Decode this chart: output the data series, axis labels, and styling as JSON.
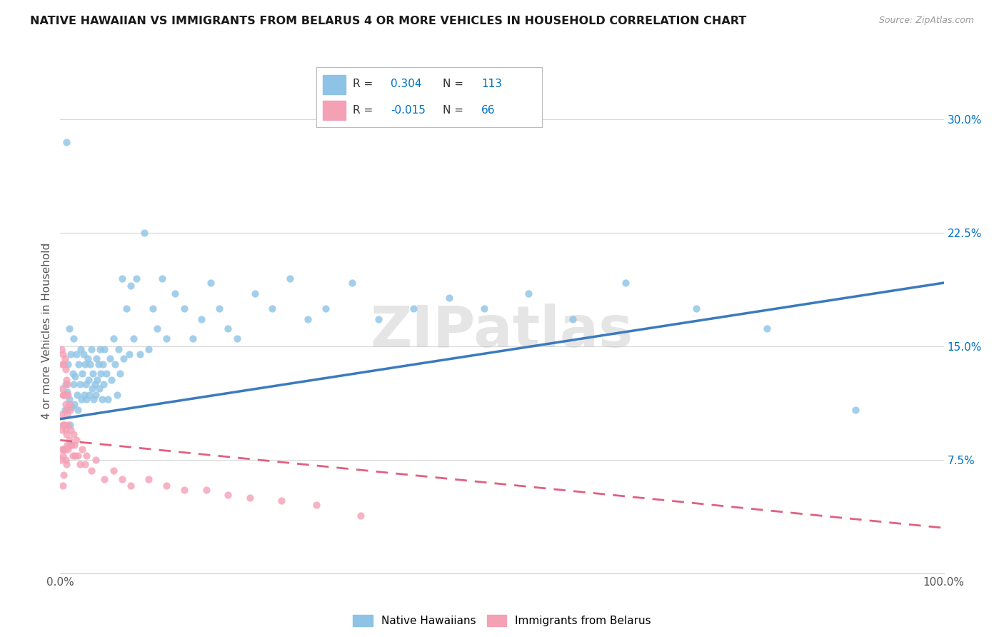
{
  "title": "NATIVE HAWAIIAN VS IMMIGRANTS FROM BELARUS 4 OR MORE VEHICLES IN HOUSEHOLD CORRELATION CHART",
  "source": "Source: ZipAtlas.com",
  "ylabel": "4 or more Vehicles in Household",
  "xlim": [
    0,
    1.0
  ],
  "ylim": [
    0,
    0.32
  ],
  "yticks_right": [
    0.075,
    0.15,
    0.225,
    0.3
  ],
  "yticklabels_right": [
    "7.5%",
    "15.0%",
    "22.5%",
    "30.0%"
  ],
  "color_blue": "#8ec3e6",
  "color_blue_line": "#3a7abf",
  "color_pink": "#f4a0b5",
  "color_pink_line": "#e06080",
  "color_r_value": "#0070C0",
  "watermark": "ZIPatlas",
  "blue_trend_y_start": 0.102,
  "blue_trend_y_end": 0.192,
  "pink_trend_y_start": 0.088,
  "pink_trend_y_end": 0.03,
  "background_color": "#ffffff",
  "grid_color": "#d8d8d8",
  "blue_x": [
    0.005,
    0.006,
    0.007,
    0.008,
    0.009,
    0.01,
    0.01,
    0.011,
    0.012,
    0.013,
    0.014,
    0.015,
    0.015,
    0.016,
    0.017,
    0.018,
    0.019,
    0.02,
    0.021,
    0.022,
    0.023,
    0.024,
    0.025,
    0.026,
    0.027,
    0.028,
    0.029,
    0.03,
    0.031,
    0.032,
    0.033,
    0.034,
    0.035,
    0.036,
    0.037,
    0.038,
    0.039,
    0.04,
    0.041,
    0.042,
    0.043,
    0.044,
    0.045,
    0.046,
    0.047,
    0.048,
    0.049,
    0.05,
    0.052,
    0.054,
    0.056,
    0.058,
    0.06,
    0.062,
    0.064,
    0.066,
    0.068,
    0.07,
    0.072,
    0.075,
    0.078,
    0.08,
    0.083,
    0.086,
    0.09,
    0.095,
    0.1,
    0.105,
    0.11,
    0.115,
    0.12,
    0.13,
    0.14,
    0.15,
    0.16,
    0.17,
    0.18,
    0.19,
    0.2,
    0.22,
    0.24,
    0.26,
    0.28,
    0.3,
    0.33,
    0.36,
    0.4,
    0.44,
    0.48,
    0.53,
    0.58,
    0.64,
    0.72,
    0.8,
    0.9
  ],
  "blue_y": [
    0.108,
    0.125,
    0.285,
    0.12,
    0.138,
    0.115,
    0.162,
    0.098,
    0.145,
    0.11,
    0.132,
    0.125,
    0.155,
    0.112,
    0.13,
    0.145,
    0.118,
    0.108,
    0.138,
    0.125,
    0.148,
    0.115,
    0.132,
    0.145,
    0.118,
    0.138,
    0.125,
    0.115,
    0.142,
    0.128,
    0.118,
    0.138,
    0.148,
    0.122,
    0.132,
    0.115,
    0.125,
    0.118,
    0.142,
    0.128,
    0.138,
    0.122,
    0.148,
    0.132,
    0.115,
    0.138,
    0.125,
    0.148,
    0.132,
    0.115,
    0.142,
    0.128,
    0.155,
    0.138,
    0.118,
    0.148,
    0.132,
    0.195,
    0.142,
    0.175,
    0.145,
    0.19,
    0.155,
    0.195,
    0.145,
    0.225,
    0.148,
    0.175,
    0.162,
    0.195,
    0.155,
    0.185,
    0.175,
    0.155,
    0.168,
    0.192,
    0.175,
    0.162,
    0.155,
    0.185,
    0.175,
    0.195,
    0.168,
    0.175,
    0.192,
    0.168,
    0.175,
    0.182,
    0.175,
    0.185,
    0.168,
    0.192,
    0.175,
    0.162,
    0.108
  ],
  "pink_x": [
    0.001,
    0.001,
    0.001,
    0.002,
    0.002,
    0.002,
    0.002,
    0.003,
    0.003,
    0.003,
    0.003,
    0.003,
    0.004,
    0.004,
    0.004,
    0.004,
    0.004,
    0.005,
    0.005,
    0.005,
    0.005,
    0.006,
    0.006,
    0.006,
    0.006,
    0.007,
    0.007,
    0.007,
    0.007,
    0.008,
    0.008,
    0.008,
    0.009,
    0.009,
    0.009,
    0.01,
    0.01,
    0.011,
    0.011,
    0.012,
    0.013,
    0.014,
    0.015,
    0.016,
    0.017,
    0.018,
    0.02,
    0.022,
    0.025,
    0.028,
    0.03,
    0.035,
    0.04,
    0.05,
    0.06,
    0.07,
    0.08,
    0.1,
    0.12,
    0.14,
    0.165,
    0.19,
    0.215,
    0.25,
    0.29,
    0.34
  ],
  "pink_y": [
    0.148,
    0.105,
    0.075,
    0.138,
    0.095,
    0.122,
    0.082,
    0.145,
    0.118,
    0.098,
    0.078,
    0.058,
    0.138,
    0.118,
    0.098,
    0.082,
    0.065,
    0.142,
    0.118,
    0.098,
    0.082,
    0.135,
    0.112,
    0.095,
    0.075,
    0.128,
    0.108,
    0.092,
    0.072,
    0.125,
    0.105,
    0.085,
    0.118,
    0.098,
    0.082,
    0.112,
    0.088,
    0.108,
    0.085,
    0.095,
    0.085,
    0.078,
    0.092,
    0.085,
    0.078,
    0.088,
    0.078,
    0.072,
    0.082,
    0.072,
    0.078,
    0.068,
    0.075,
    0.062,
    0.068,
    0.062,
    0.058,
    0.062,
    0.058,
    0.055,
    0.055,
    0.052,
    0.05,
    0.048,
    0.045,
    0.038
  ]
}
